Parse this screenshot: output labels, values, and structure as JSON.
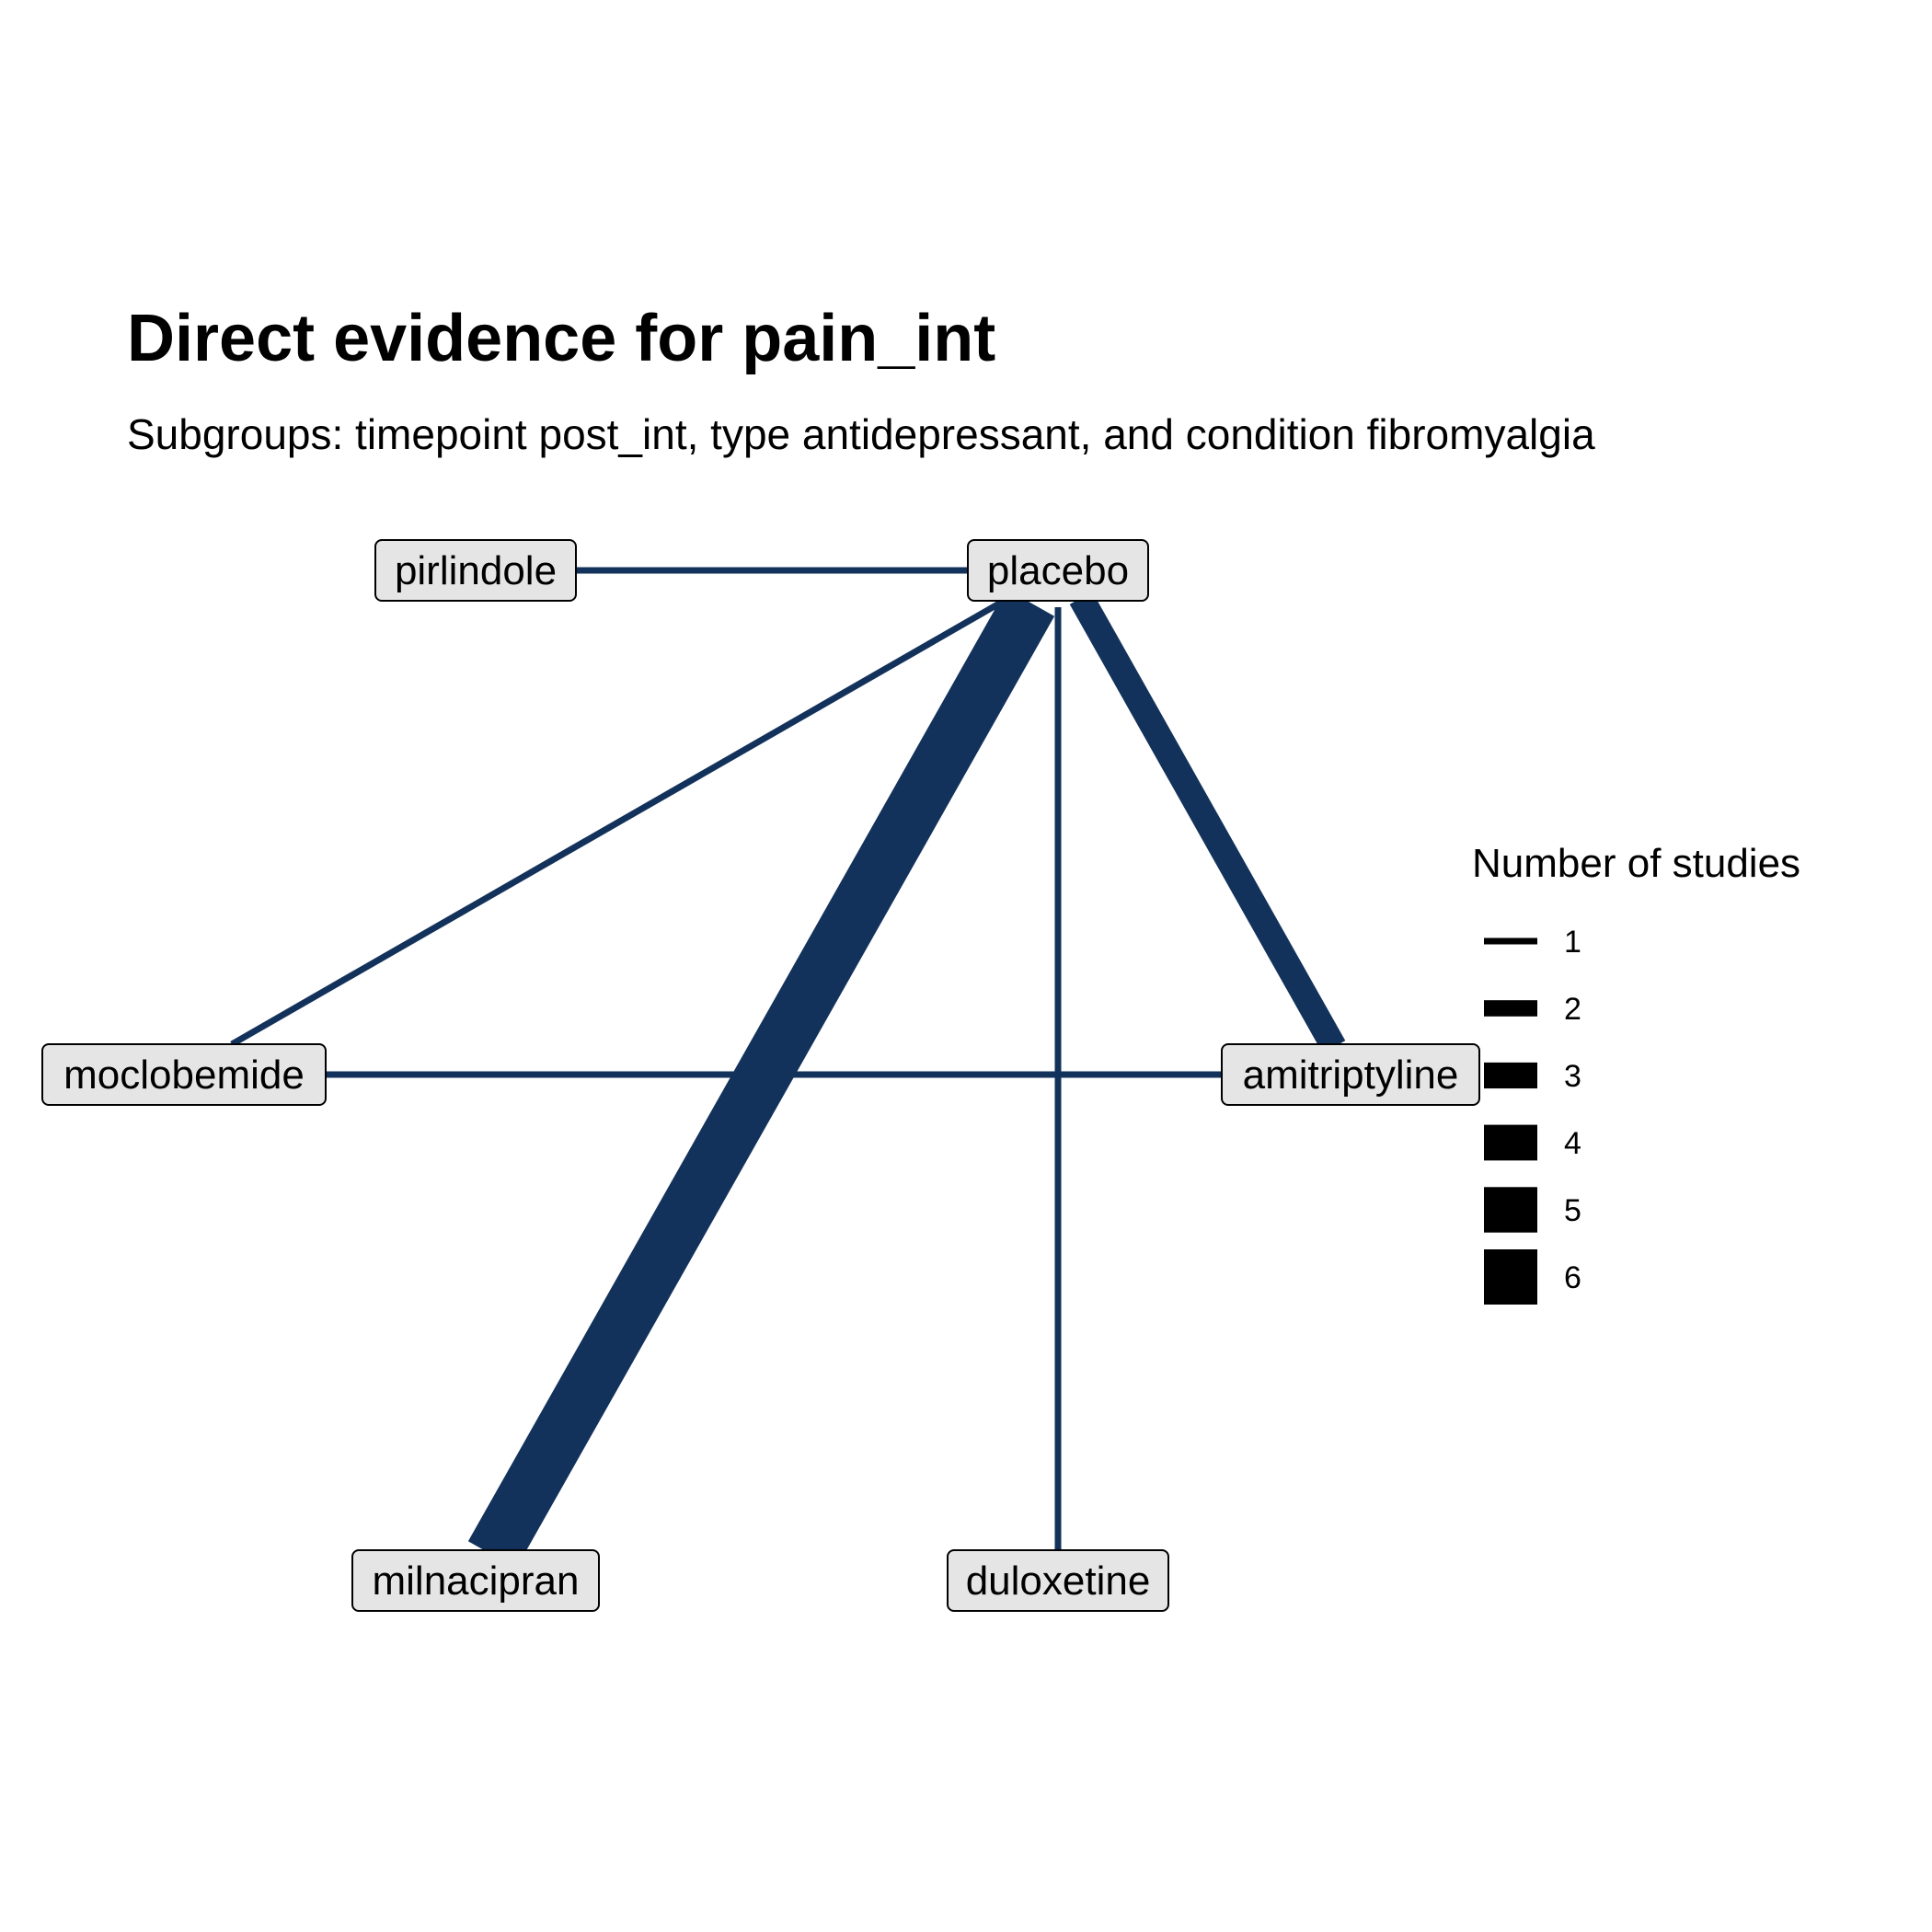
{
  "title": "Direct evidence for pain_int",
  "subtitle": "Subgroups: timepoint post_int, type antidepressant, and condition fibromyalgia",
  "colors": {
    "edge": "#13325b",
    "node_fill": "#e5e5e5",
    "node_border": "#000000",
    "legend_key": "#000000"
  },
  "nodes": [
    {
      "id": "pirlindole",
      "label": "pirlindole"
    },
    {
      "id": "placebo",
      "label": "placebo"
    },
    {
      "id": "moclobemide",
      "label": "moclobemide"
    },
    {
      "id": "amitriptyline",
      "label": "amitriptyline"
    },
    {
      "id": "milnacipran",
      "label": "milnacipran"
    },
    {
      "id": "duloxetine",
      "label": "duloxetine"
    }
  ],
  "edges": [
    {
      "from": "pirlindole",
      "to": "placebo",
      "studies": 1
    },
    {
      "from": "moclobemide",
      "to": "placebo",
      "studies": 1
    },
    {
      "from": "milnacipran",
      "to": "placebo",
      "studies": 6
    },
    {
      "from": "duloxetine",
      "to": "placebo",
      "studies": 1
    },
    {
      "from": "amitriptyline",
      "to": "placebo",
      "studies": 3
    },
    {
      "from": "moclobemide",
      "to": "amitriptyline",
      "studies": 1
    }
  ],
  "legend": {
    "title": "Number of studies",
    "items": [
      "1",
      "2",
      "3",
      "4",
      "5",
      "6"
    ]
  }
}
